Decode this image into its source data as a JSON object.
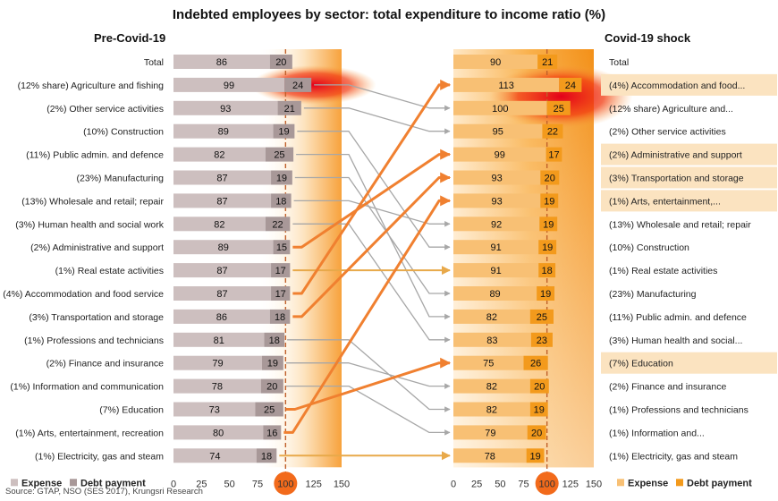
{
  "chart_data": {
    "type": "bar",
    "title": "Indebted employees by sector: total expenditure to income ratio (%)",
    "source": "Source: GTAP, NSO (SES 2017), Krungsri Research",
    "xlim": [
      0,
      150
    ],
    "ticks": [
      0,
      25,
      50,
      75,
      100,
      125,
      150
    ],
    "reference_line": 100,
    "left": {
      "subtitle": "Pre-Covid-19",
      "legend": {
        "expense": "Expense",
        "debt": "Debt payment"
      },
      "colors": {
        "expense": "#cdbfbf",
        "debt": "#a89898"
      },
      "rows": [
        {
          "label": "Total",
          "expense": 86,
          "debt": 20
        },
        {
          "label": "(12% share) Agriculture and fishing",
          "expense": 99,
          "debt": 24
        },
        {
          "label": "(2%) Other service activities",
          "expense": 93,
          "debt": 21
        },
        {
          "label": "(10%) Construction",
          "expense": 89,
          "debt": 19
        },
        {
          "label": "(11%) Public admin. and defence",
          "expense": 82,
          "debt": 25
        },
        {
          "label": "(23%) Manufacturing",
          "expense": 87,
          "debt": 19
        },
        {
          "label": "(13%) Wholesale and retail; repair",
          "expense": 87,
          "debt": 18
        },
        {
          "label": "(3%) Human health and social work",
          "expense": 82,
          "debt": 22
        },
        {
          "label": "(2%) Administrative and support",
          "expense": 89,
          "debt": 15
        },
        {
          "label": "(1%) Real estate activities",
          "expense": 87,
          "debt": 17
        },
        {
          "label": "(4%) Accommodation and food service",
          "expense": 87,
          "debt": 17
        },
        {
          "label": "(3%) Transportation and storage",
          "expense": 86,
          "debt": 18
        },
        {
          "label": "(1%) Professions and technicians",
          "expense": 81,
          "debt": 18
        },
        {
          "label": "(2%) Finance and insurance",
          "expense": 79,
          "debt": 19
        },
        {
          "label": "(1%) Information and communication",
          "expense": 78,
          "debt": 20
        },
        {
          "label": "(7%) Education",
          "expense": 73,
          "debt": 25
        },
        {
          "label": "(1%) Arts, entertainment, recreation",
          "expense": 80,
          "debt": 16
        },
        {
          "label": "(1%) Electricity, gas and steam",
          "expense": 74,
          "debt": 18
        }
      ]
    },
    "right": {
      "subtitle": "Covid-19 shock",
      "legend": {
        "expense": "Expense",
        "debt": "Debt payment"
      },
      "colors": {
        "expense": "#f8c074",
        "debt": "#f39a1c"
      },
      "rows": [
        {
          "label": "Total",
          "expense": 90,
          "debt": 21,
          "highlight": false
        },
        {
          "label": "(4%) Accommodation and food...",
          "expense": 113,
          "debt": 24,
          "highlight": true
        },
        {
          "label": "(12% share) Agriculture and...",
          "expense": 100,
          "debt": 25,
          "highlight": false
        },
        {
          "label": "(2%) Other service activities",
          "expense": 95,
          "debt": 22,
          "highlight": false
        },
        {
          "label": "(2%) Administrative and support",
          "expense": 99,
          "debt": 17,
          "highlight": true
        },
        {
          "label": "(3%) Transportation and storage",
          "expense": 93,
          "debt": 20,
          "highlight": true
        },
        {
          "label": "(1%) Arts, entertainment,...",
          "expense": 93,
          "debt": 19,
          "highlight": true
        },
        {
          "label": "(13%) Wholesale and retail; repair",
          "expense": 92,
          "debt": 19,
          "highlight": false
        },
        {
          "label": "(10%) Construction",
          "expense": 91,
          "debt": 19,
          "highlight": false
        },
        {
          "label": "(1%) Real estate activities",
          "expense": 91,
          "debt": 18,
          "highlight": false
        },
        {
          "label": "(23%) Manufacturing",
          "expense": 89,
          "debt": 19,
          "highlight": false
        },
        {
          "label": "(11%) Public admin. and defence",
          "expense": 82,
          "debt": 25,
          "highlight": false
        },
        {
          "label": "(3%) Human health and social...",
          "expense": 83,
          "debt": 23,
          "highlight": false
        },
        {
          "label": "(7%) Education",
          "expense": 75,
          "debt": 26,
          "highlight": true
        },
        {
          "label": "(2%) Finance and insurance",
          "expense": 82,
          "debt": 20,
          "highlight": false
        },
        {
          "label": "(1%) Professions and technicians",
          "expense": 82,
          "debt": 19,
          "highlight": false
        },
        {
          "label": "(1%) Information and...",
          "expense": 79,
          "debt": 20,
          "highlight": false
        },
        {
          "label": "(1%) Electricity, gas and steam",
          "expense": 78,
          "debt": 19,
          "highlight": false
        }
      ]
    },
    "connectors": [
      {
        "from": 1,
        "to": 2,
        "kind": "gray"
      },
      {
        "from": 2,
        "to": 3,
        "kind": "gray"
      },
      {
        "from": 3,
        "to": 8,
        "kind": "gray"
      },
      {
        "from": 4,
        "to": 11,
        "kind": "gray"
      },
      {
        "from": 5,
        "to": 10,
        "kind": "gray"
      },
      {
        "from": 6,
        "to": 7,
        "kind": "gray"
      },
      {
        "from": 7,
        "to": 12,
        "kind": "gray"
      },
      {
        "from": 8,
        "to": 4,
        "kind": "orange"
      },
      {
        "from": 9,
        "to": 9,
        "kind": "gold"
      },
      {
        "from": 10,
        "to": 1,
        "kind": "orange"
      },
      {
        "from": 11,
        "to": 5,
        "kind": "orange"
      },
      {
        "from": 12,
        "to": 15,
        "kind": "gray"
      },
      {
        "from": 13,
        "to": 14,
        "kind": "gray"
      },
      {
        "from": 14,
        "to": 16,
        "kind": "gray"
      },
      {
        "from": 15,
        "to": 13,
        "kind": "orange"
      },
      {
        "from": 16,
        "to": 6,
        "kind": "orange"
      },
      {
        "from": 17,
        "to": 17,
        "kind": "gold"
      }
    ],
    "colors": {
      "connector_gray": "#a7a7a7",
      "connector_orange": "#f08030",
      "connector_gold": "#e8a94a",
      "ref_line": "#c0602a",
      "ref_circle": "#f26a1b",
      "highlight_bg": "#fbe3c0"
    }
  }
}
